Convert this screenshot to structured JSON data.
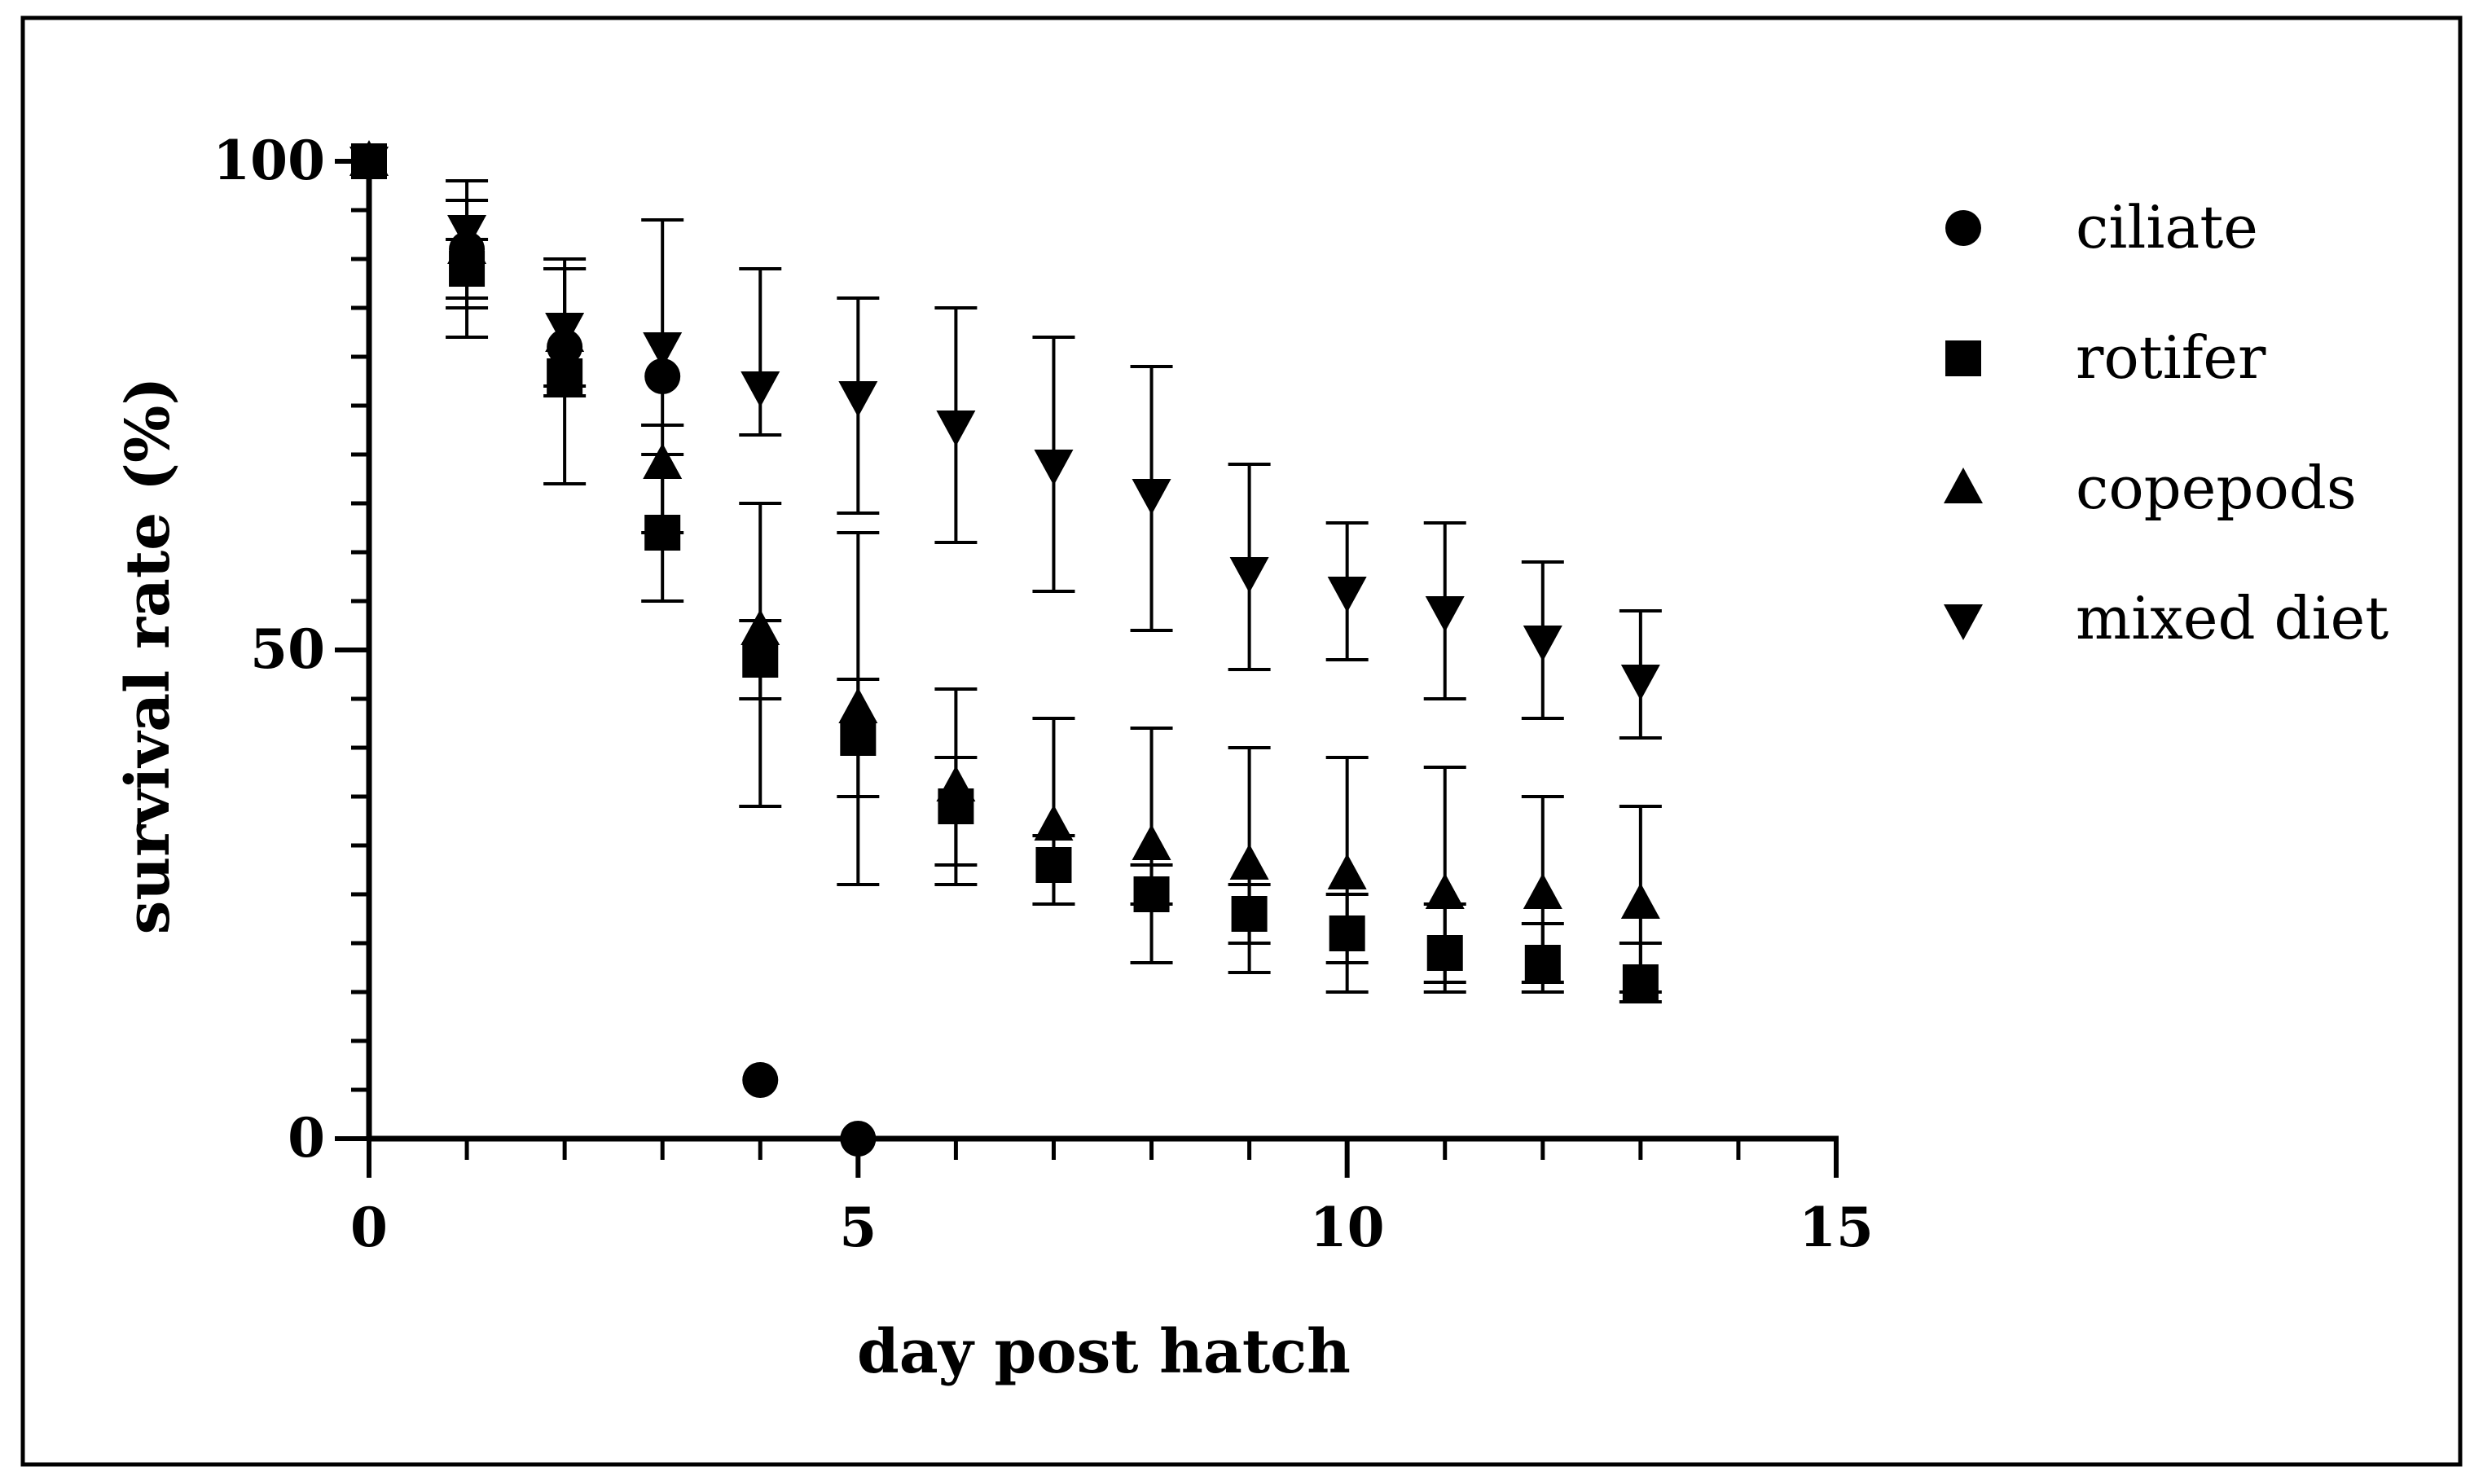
{
  "chart_data": {
    "type": "scatter",
    "title": "",
    "xlabel": "day post hatch",
    "ylabel": "survival rate (%)",
    "xlim": [
      0,
      15
    ],
    "ylim": [
      0,
      100
    ],
    "x_ticks": [
      0,
      5,
      10,
      15
    ],
    "y_ticks": [
      0,
      50,
      100
    ],
    "x_tick_labels": [
      "0",
      "5",
      "10",
      "15"
    ],
    "y_tick_labels": [
      "0",
      "50",
      "100"
    ],
    "grid": false,
    "legend_position": "right",
    "error_bars": true,
    "series": [
      {
        "name": "ciliate",
        "marker": "circle",
        "points": [
          {
            "x": 0,
            "y": 100
          },
          {
            "x": 1,
            "y": 91
          },
          {
            "x": 2,
            "y": 81
          },
          {
            "x": 3,
            "y": 78
          },
          {
            "x": 4,
            "y": 6
          },
          {
            "x": 5,
            "y": 0
          }
        ]
      },
      {
        "name": "rotifer",
        "marker": "square",
        "points": [
          {
            "x": 0,
            "y": 100
          },
          {
            "x": 1,
            "y": 89,
            "err_low": 86,
            "err_high": 92
          },
          {
            "x": 2,
            "y": 78,
            "err_low": 67,
            "err_high": 89
          },
          {
            "x": 3,
            "y": 62,
            "err_low": 55,
            "err_high": 70
          },
          {
            "x": 4,
            "y": 49,
            "err_low": 34,
            "err_high": 65
          },
          {
            "x": 5,
            "y": 41,
            "err_low": 26,
            "err_high": 62
          },
          {
            "x": 6,
            "y": 34,
            "err_low": 28,
            "err_high": 39
          },
          {
            "x": 7,
            "y": 28,
            "err_low": 24,
            "err_high": 31
          },
          {
            "x": 8,
            "y": 25,
            "err_low": 18,
            "err_high": 28
          },
          {
            "x": 9,
            "y": 23,
            "err_low": 17,
            "err_high": 26
          },
          {
            "x": 10,
            "y": 21,
            "err_low": 15,
            "err_high": 25
          },
          {
            "x": 11,
            "y": 19,
            "err_low": 15,
            "err_high": 24
          },
          {
            "x": 12,
            "y": 18,
            "err_low": 15,
            "err_high": 22
          },
          {
            "x": 13,
            "y": 16,
            "err_low": 14,
            "err_high": 20
          }
        ]
      },
      {
        "name": "copepods",
        "marker": "triangle-up",
        "points": [
          {
            "x": 0,
            "y": 100
          },
          {
            "x": 1,
            "y": 91,
            "err_low": 85,
            "err_high": 96
          },
          {
            "x": 2,
            "y": 82,
            "err_low": 76,
            "err_high": 89
          },
          {
            "x": 3,
            "y": 69,
            "err_low": 62,
            "err_high": 73
          },
          {
            "x": 4,
            "y": 52,
            "err_low": 45,
            "err_high": 53
          },
          {
            "x": 5,
            "y": 44,
            "err_low": 35,
            "err_high": 47
          },
          {
            "x": 6,
            "y": 36,
            "err_low": 26,
            "err_high": 46
          },
          {
            "x": 7,
            "y": 32,
            "err_low": 24,
            "err_high": 43
          },
          {
            "x": 8,
            "y": 30,
            "err_low": 24,
            "err_high": 42
          },
          {
            "x": 9,
            "y": 28,
            "err_low": 20,
            "err_high": 40
          },
          {
            "x": 10,
            "y": 27,
            "err_low": 18,
            "err_high": 39
          },
          {
            "x": 11,
            "y": 25,
            "err_low": 16,
            "err_high": 38
          },
          {
            "x": 12,
            "y": 25,
            "err_low": 16,
            "err_high": 35
          },
          {
            "x": 13,
            "y": 24,
            "err_low": 15,
            "err_high": 34
          }
        ]
      },
      {
        "name": "mixed diet",
        "marker": "triangle-down",
        "points": [
          {
            "x": 0,
            "y": 100
          },
          {
            "x": 1,
            "y": 93,
            "err_low": 82,
            "err_high": 98
          },
          {
            "x": 2,
            "y": 83,
            "err_low": 77,
            "err_high": 90
          },
          {
            "x": 3,
            "y": 81,
            "err_low": 73,
            "err_high": 94
          },
          {
            "x": 4,
            "y": 77,
            "err_low": 72,
            "err_high": 89
          },
          {
            "x": 5,
            "y": 76,
            "err_low": 64,
            "err_high": 86
          },
          {
            "x": 6,
            "y": 73,
            "err_low": 61,
            "err_high": 85
          },
          {
            "x": 7,
            "y": 69,
            "err_low": 56,
            "err_high": 82
          },
          {
            "x": 8,
            "y": 66,
            "err_low": 52,
            "err_high": 79
          },
          {
            "x": 9,
            "y": 58,
            "err_low": 48,
            "err_high": 69
          },
          {
            "x": 10,
            "y": 56,
            "err_low": 49,
            "err_high": 63
          },
          {
            "x": 11,
            "y": 54,
            "err_low": 45,
            "err_high": 63
          },
          {
            "x": 12,
            "y": 51,
            "err_low": 43,
            "err_high": 59
          },
          {
            "x": 13,
            "y": 47,
            "err_low": 41,
            "err_high": 54
          }
        ]
      }
    ]
  }
}
